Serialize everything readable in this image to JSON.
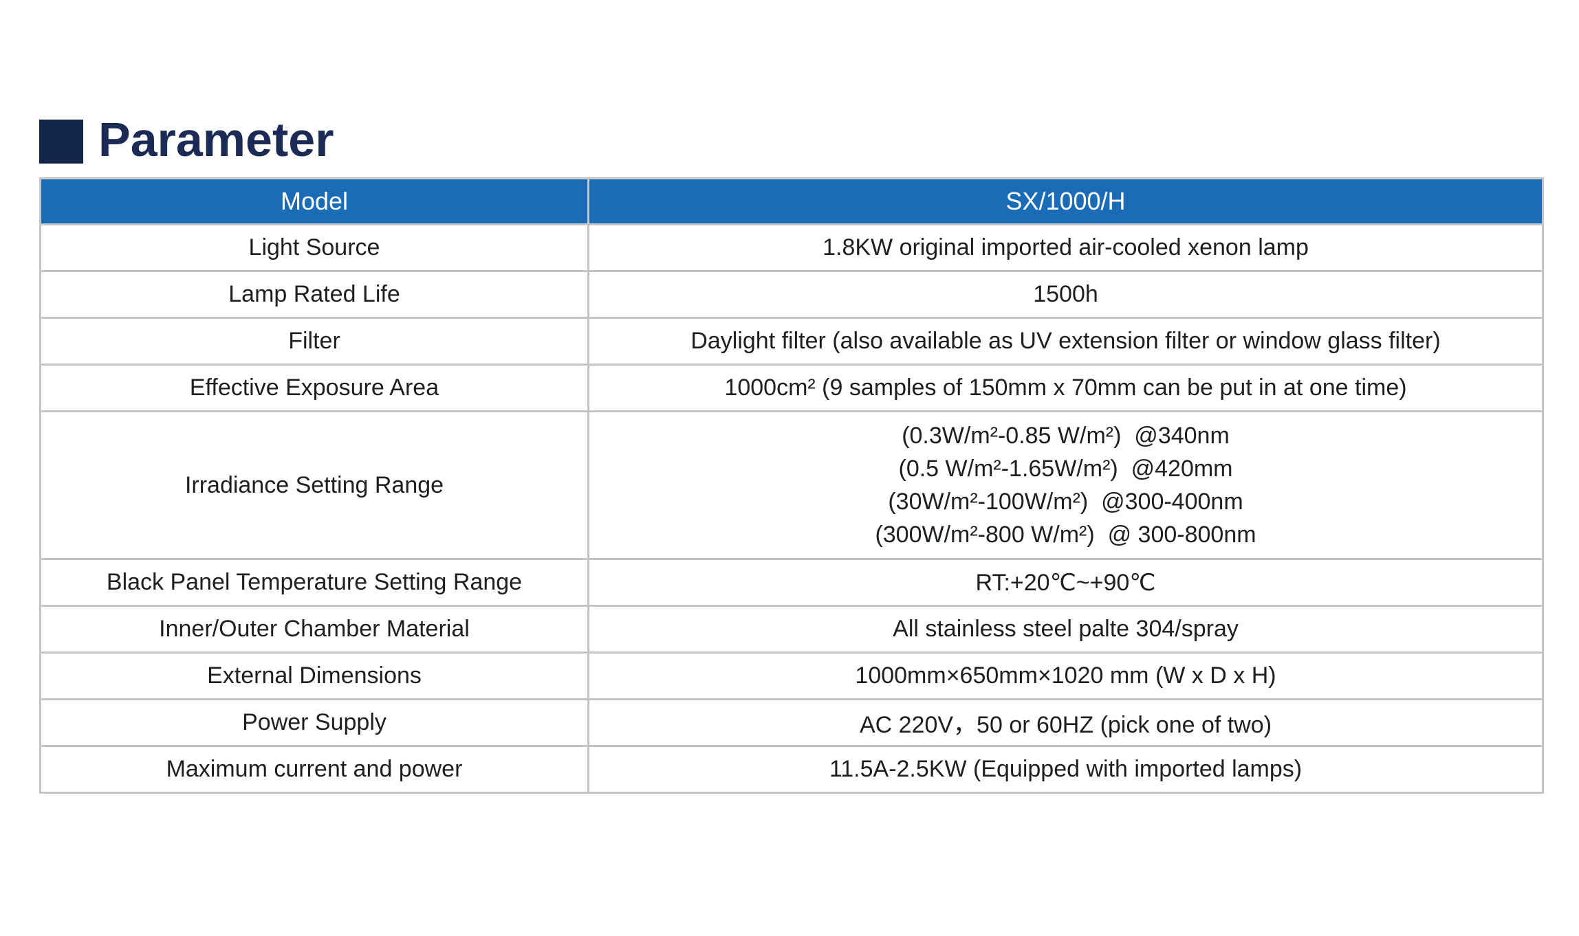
{
  "page": {
    "heading": "Parameter"
  },
  "colors": {
    "header_bg": "#1b6cb6",
    "heading_square": "#14254c",
    "heading_text": "#1b2b55",
    "table_border": "#c5c5c5",
    "body_text": "#221e1f"
  },
  "table": {
    "header": {
      "col1": "Model",
      "col2": "SX/1000/H"
    },
    "rows": [
      {
        "label": "Light Source",
        "value": "1.8KW original imported air-cooled xenon lamp"
      },
      {
        "label": "Lamp Rated Life",
        "value": "1500h"
      },
      {
        "label": "Filter",
        "value": "Daylight filter (also available as UV extension filter or window glass filter)"
      },
      {
        "label": "Effective Exposure Area",
        "value": "1000cm² (9 samples of 150mm x 70mm can be put in at one time)"
      },
      {
        "label": "Irradiance Setting Range",
        "value_lines": [
          "(0.3W/m²-0.85 W/m²)  @340nm",
          "(0.5 W/m²-1.65W/m²)  @420mm",
          "(30W/m²-100W/m²)  @300-400nm",
          "(300W/m²-800 W/m²)  @ 300-800nm"
        ]
      },
      {
        "label": "Black Panel Temperature Setting Range",
        "value": "RT:+20℃~+90℃"
      },
      {
        "label": "Inner/Outer Chamber Material",
        "value": "All stainless steel palte 304/spray"
      },
      {
        "label": "External Dimensions",
        "value": "1000mm×650mm×1020 mm (W x D x H)"
      },
      {
        "label": "Power Supply",
        "value": "AC 220V，50 or 60HZ (pick one of two)"
      },
      {
        "label": "Maximum current and power",
        "value": "11.5A-2.5KW (Equipped with imported lamps)"
      }
    ]
  }
}
